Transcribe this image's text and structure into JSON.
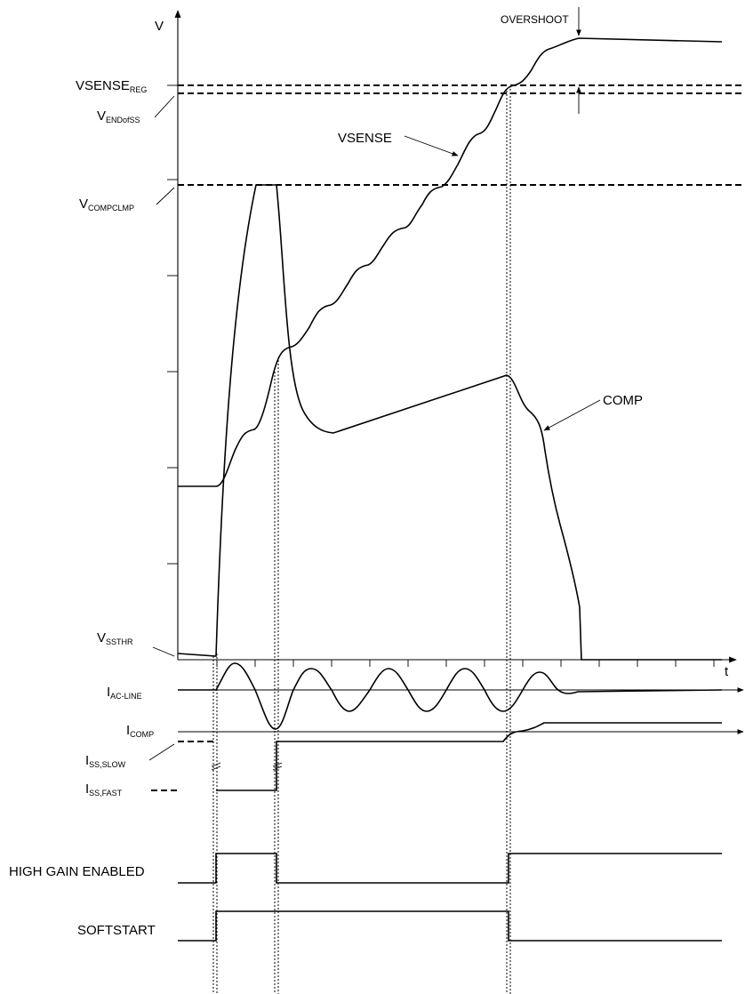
{
  "axes": {
    "y_label": "V",
    "x_label": "t"
  },
  "levels": {
    "vsense_reg": {
      "main": "VSENSE",
      "sub": "REG"
    },
    "v_endofss": {
      "main": "V",
      "sub": "ENDofSS"
    },
    "v_compclmp": {
      "main": "V",
      "sub": "COMPCLMP"
    },
    "v_ssthr": {
      "main": "V",
      "sub": "SSTHR"
    }
  },
  "annotations": {
    "overshoot": "OVERSHOOT",
    "vsense": "VSENSE",
    "comp": "COMP"
  },
  "currents": {
    "i_ac_line": {
      "main": "I",
      "sub": "AC-LINE"
    },
    "i_comp": {
      "main": "I",
      "sub": "COMP"
    },
    "i_ss_slow": {
      "main": "I",
      "sub": "SS,SLOW"
    },
    "i_ss_fast": {
      "main": "I",
      "sub": "SS,FAST"
    }
  },
  "signals": {
    "high_gain": "HIGH GAIN ENABLED",
    "softstart": "SOFTSTART"
  }
}
